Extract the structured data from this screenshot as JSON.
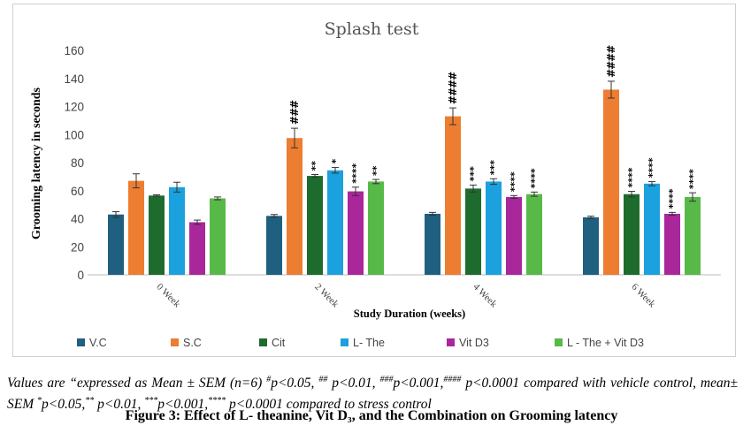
{
  "chart_data": {
    "type": "bar",
    "title": "Splash test",
    "xlabel": "Study Duration (weeks)",
    "ylabel": "Grooming latency in seconds",
    "ylim": [
      0,
      160
    ],
    "yticks": [
      0,
      20,
      40,
      60,
      80,
      100,
      120,
      140,
      160
    ],
    "categories": [
      "0 Week",
      "2 Week",
      "4 Week",
      "6 Week"
    ],
    "grid": false,
    "legend_position": "bottom",
    "series": [
      {
        "name": "V.C",
        "color": "#1f5f7f",
        "values": [
          43,
          42,
          43.5,
          41
        ],
        "errors": [
          2,
          1,
          1,
          0.8
        ],
        "marks": [
          "",
          "",
          "",
          ""
        ]
      },
      {
        "name": "S.C",
        "color": "#ed7d31",
        "values": [
          67,
          97.5,
          113,
          132
        ],
        "errors": [
          5,
          7,
          6,
          6
        ],
        "marks": [
          "",
          "###",
          "####",
          "####"
        ]
      },
      {
        "name": "Cit",
        "color": "#1e6b2e",
        "values": [
          56.5,
          70.5,
          61.5,
          57.5
        ],
        "errors": [
          0.5,
          1,
          2.5,
          2
        ],
        "marks": [
          "",
          "**",
          "***",
          "****"
        ]
      },
      {
        "name": "L- The",
        "color": "#1ba1dd",
        "values": [
          62.5,
          74.5,
          66.5,
          65
        ],
        "errors": [
          3.5,
          2,
          2,
          1.5
        ],
        "marks": [
          "",
          "*",
          "***",
          "****"
        ]
      },
      {
        "name": "Vit D3",
        "color": "#a9279b",
        "values": [
          37.5,
          59.5,
          55.5,
          43.5
        ],
        "errors": [
          1.5,
          3,
          1,
          1
        ],
        "marks": [
          "",
          "****",
          "****",
          "****"
        ]
      },
      {
        "name": "L - The + Vit D3",
        "color": "#57b947",
        "values": [
          54.5,
          66.5,
          57.5,
          55.5
        ],
        "errors": [
          1,
          1.5,
          1.5,
          3
        ],
        "marks": [
          "",
          "**",
          "****",
          "****"
        ]
      }
    ]
  },
  "caption": {
    "note_a": "Values are “expressed as Mean ± SEM (n=6) ",
    "sup1": "#",
    "note_b": "p<0.05, ",
    "sup2": "##",
    "note_c": " p<0.01, ",
    "sup3": "###",
    "note_d": "p<0.001,",
    "sup4": "####",
    "note_e": " p<0.0001 compared with vehicle control, mean± SEM ",
    "sup5": "*",
    "note_f": "p<0.05,",
    "sup6": "**",
    "note_g": " p<0.01, ",
    "sup7": "***",
    "note_h": "p<0.001,",
    "sup8": "****",
    "note_i": " p<0.0001 compared to stress control",
    "figure_title": "Figure 3: Effect of L- theanine, Vit D₃, and the Combination on Grooming latency"
  }
}
